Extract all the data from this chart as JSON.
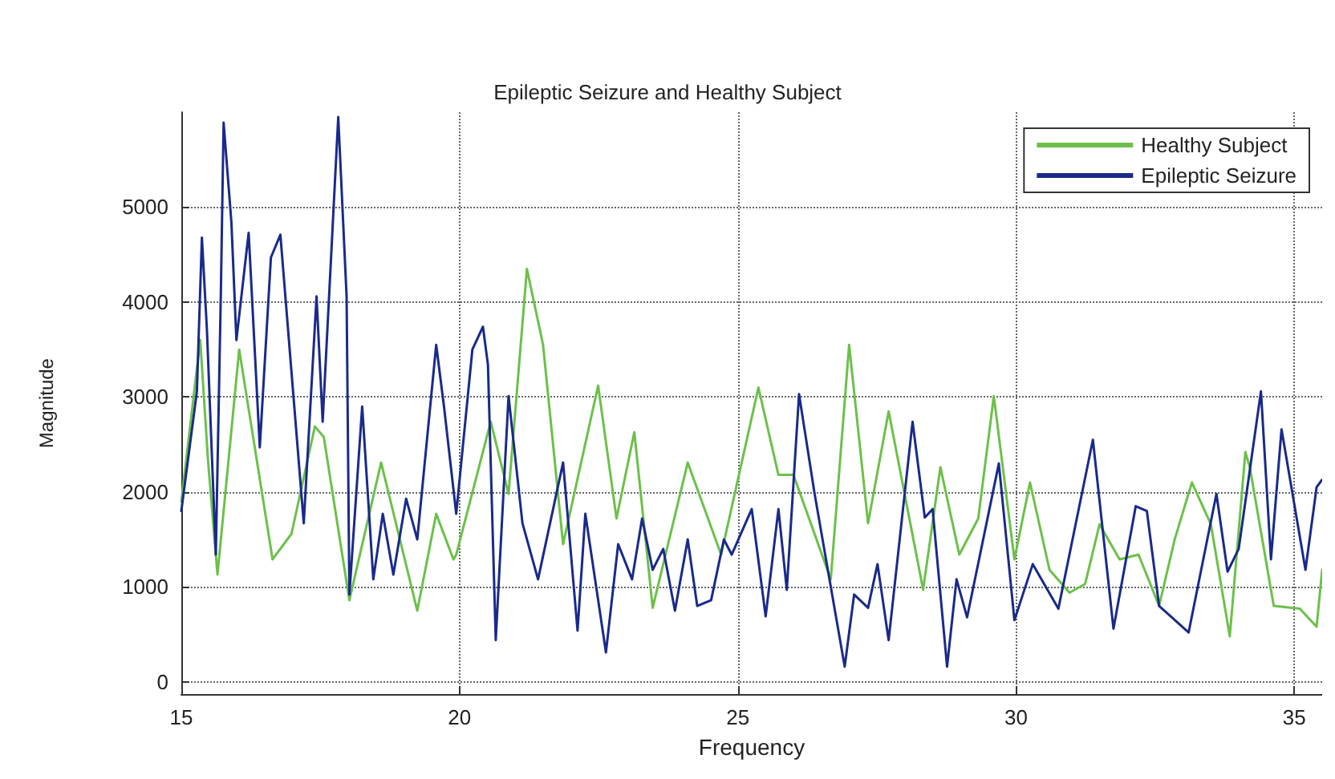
{
  "chart_data": {
    "type": "line",
    "title": "Epileptic Seizure and Healthy Subject",
    "xlabel": "Frequency",
    "ylabel": "Magnitude",
    "xlim": [
      15,
      35.5
    ],
    "xticks": [
      15,
      20,
      25,
      30,
      35
    ],
    "ylim": [
      -130,
      6000
    ],
    "yticks": [
      0,
      1000,
      2000,
      3000,
      4000,
      5000
    ],
    "grid": true,
    "legend": "top right",
    "marker": "none",
    "line_style": "solid",
    "series": [
      {
        "name": "Healthy Subject",
        "color": "#6cc04a",
        "x": [
          15,
          15.34,
          15.48,
          15.65,
          16.04,
          16.64,
          16.98,
          17.4,
          17.56,
          18.02,
          18.59,
          19.24,
          19.58,
          19.89,
          19.94,
          20.56,
          20.88,
          21.21,
          21.5,
          21.86,
          22.49,
          22.82,
          23.14,
          23.47,
          24.1,
          24.7,
          25.37,
          25.73,
          26.0,
          26.67,
          27.0,
          27.34,
          27.71,
          28.33,
          28.64,
          28.98,
          29.32,
          29.6,
          29.97,
          30.25,
          30.6,
          30.96,
          31.24,
          31.5,
          31.86,
          32.2,
          32.57,
          32.85,
          33.16,
          33.5,
          33.84,
          34.12,
          34.2,
          34.63,
          35.1,
          35.4,
          35.5
        ],
        "values": [
          1900,
          3600,
          2330,
          1130,
          3500,
          1290,
          1560,
          2690,
          2580,
          860,
          2310,
          750,
          1770,
          1290,
          1340,
          2740,
          1980,
          4350,
          3550,
          1450,
          3120,
          1720,
          2630,
          780,
          2310,
          1340,
          3100,
          2180,
          2180,
          1080,
          3550,
          1670,
          2850,
          970,
          2260,
          1340,
          1720,
          3010,
          1290,
          2100,
          1180,
          940,
          1030,
          1660,
          1290,
          1340,
          800,
          1500,
          2100,
          1660,
          480,
          2420,
          2260,
          800,
          770,
          580,
          1180
        ]
      },
      {
        "name": "Epileptic Seizure",
        "color": "#1a2a8a",
        "x": [
          15,
          15.28,
          15.37,
          15.46,
          15.62,
          15.71,
          15.76,
          15.9,
          15.99,
          16.21,
          16.41,
          16.61,
          16.78,
          17.2,
          17.43,
          17.54,
          17.82,
          17.97,
          18.02,
          18.25,
          18.45,
          18.62,
          18.81,
          19.04,
          19.24,
          19.58,
          19.72,
          19.94,
          20.23,
          20.42,
          20.51,
          20.65,
          20.88,
          21.13,
          21.41,
          21.86,
          22.12,
          22.26,
          22.63,
          22.85,
          23.1,
          23.28,
          23.47,
          23.66,
          23.87,
          24.1,
          24.27,
          24.52,
          24.75,
          24.89,
          25.25,
          25.5,
          25.73,
          25.88,
          26.1,
          26.38,
          26.92,
          27.09,
          27.34,
          27.51,
          27.71,
          28.14,
          28.36,
          28.5,
          28.76,
          28.93,
          29.12,
          29.69,
          29.97,
          30.3,
          30.76,
          31.38,
          31.75,
          32.15,
          32.35,
          32.57,
          33.1,
          33.6,
          33.8,
          34.0,
          34.4,
          34.58,
          34.77,
          35.2,
          35.4,
          35.5
        ],
        "values": [
          1800,
          3060,
          4680,
          3710,
          1340,
          4080,
          5890,
          4840,
          3600,
          4730,
          2470,
          4470,
          4710,
          1670,
          4060,
          2740,
          5950,
          4060,
          920,
          2900,
          1080,
          1770,
          1130,
          1930,
          1500,
          3550,
          2900,
          1770,
          3500,
          3740,
          3340,
          440,
          3010,
          1670,
          1080,
          2310,
          540,
          1770,
          310,
          1450,
          1080,
          1720,
          1180,
          1400,
          750,
          1500,
          800,
          860,
          1500,
          1340,
          1820,
          690,
          1820,
          970,
          3030,
          1980,
          160,
          920,
          780,
          1240,
          440,
          2740,
          1730,
          1820,
          160,
          1080,
          680,
          2300,
          650,
          1240,
          770,
          2550,
          560,
          1850,
          1800,
          800,
          520,
          1980,
          1160,
          1400,
          3060,
          1290,
          2660,
          1180,
          2050,
          2130
        ]
      }
    ]
  }
}
